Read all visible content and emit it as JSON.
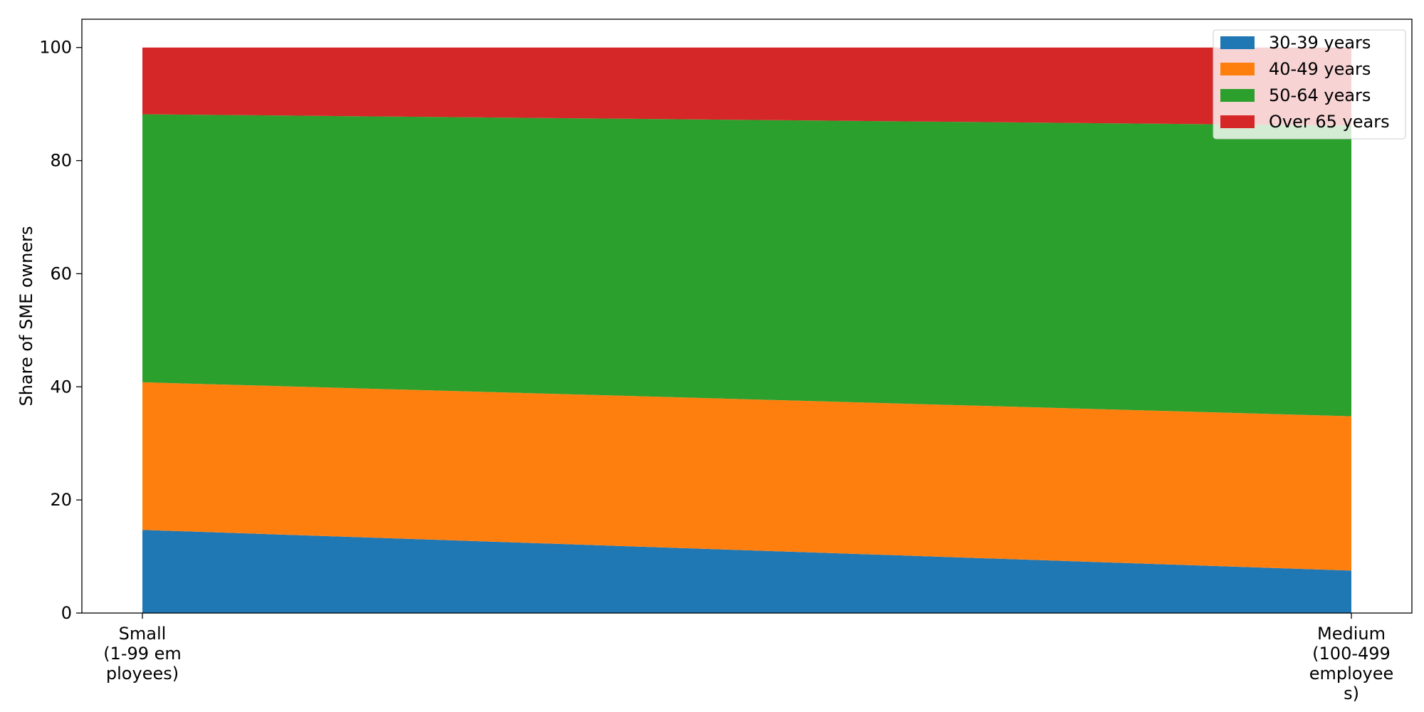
{
  "chart_data": {
    "type": "area",
    "stacked": true,
    "categories_lines": [
      [
        "Small",
        "(1-99 em",
        "ployees)"
      ],
      [
        "Medium",
        "(100-499",
        "employee",
        "s)"
      ]
    ],
    "series": [
      {
        "name": "30-39 years",
        "values": [
          14.7,
          7.5
        ],
        "color": "#1f77b4"
      },
      {
        "name": "40-49 years",
        "values": [
          26.1,
          27.3
        ],
        "color": "#ff7f0e"
      },
      {
        "name": "50-64 years",
        "values": [
          47.4,
          51.4
        ],
        "color": "#2ca02c"
      },
      {
        "name": "Over 65 years",
        "values": [
          11.8,
          13.8
        ],
        "color": "#d62728"
      }
    ],
    "ylabel": "Share of SME owners",
    "xlabel": "",
    "ylim": [
      0,
      105
    ],
    "yticks": [
      0,
      20,
      40,
      60,
      80,
      100
    ],
    "grid": false,
    "legend_position": "top-right"
  }
}
